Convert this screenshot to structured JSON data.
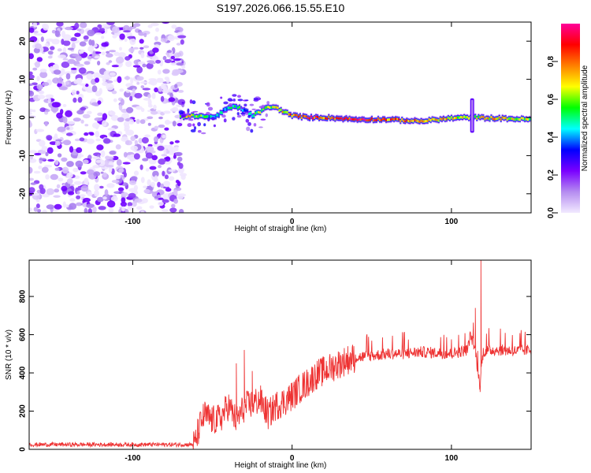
{
  "title": "S197.2026.066.15.55.E10",
  "chart_data": [
    {
      "type": "heatmap",
      "title": "S197.2026.066.15.55.E10",
      "xlabel": "Height of straight line (km)",
      "ylabel": "Frequency (Hz)",
      "xlim": [
        -165,
        150
      ],
      "ylim": [
        -25,
        25
      ],
      "xticks": [
        -100,
        0,
        100
      ],
      "yticks": [
        -20,
        -10,
        0,
        10,
        20
      ],
      "colorbar": {
        "label": "Normalized spectral amplitude",
        "range": [
          0,
          1
        ],
        "ticks": [
          0.0,
          0.2,
          0.4,
          0.6,
          0.8
        ],
        "colors": [
          "#f2eaff",
          "#b58cf0",
          "#7a00ff",
          "#0000ff",
          "#00ffff",
          "#00ff00",
          "#ffff00",
          "#ff7f00",
          "#ff0000",
          "#ff0099"
        ]
      },
      "noise_region_x": [
        -165,
        -70
      ],
      "ridge": {
        "x": [
          -70,
          -65,
          -60,
          -55,
          -50,
          -45,
          -40,
          -35,
          -30,
          -25,
          -20,
          -15,
          -10,
          -5,
          0,
          10,
          20,
          40,
          60,
          80,
          100,
          110,
          115,
          120,
          135,
          150
        ],
        "freq": [
          0.2,
          0.3,
          0.5,
          0.3,
          0.0,
          1.0,
          2.5,
          2.8,
          2.0,
          0.5,
          1.5,
          2.8,
          2.5,
          1.5,
          0.5,
          0.0,
          0.0,
          -0.5,
          -0.5,
          -1.0,
          -0.2,
          0.0,
          0.0,
          -0.1,
          -0.3,
          -0.5
        ],
        "amplitude": [
          0.6,
          0.7,
          0.6,
          0.5,
          0.4,
          0.5,
          0.4,
          0.5,
          0.4,
          0.5,
          0.6,
          0.6,
          0.7,
          0.7,
          0.8,
          0.9,
          0.8,
          0.9,
          0.8,
          0.8,
          0.7,
          0.6,
          0.6,
          0.7,
          0.7,
          0.6
        ]
      },
      "spike": {
        "x": 113,
        "freq_range": [
          -4,
          5
        ]
      }
    },
    {
      "type": "line",
      "xlabel": "Height of straight line (km)",
      "ylabel": "SNR (10 * v/v)",
      "xlim": [
        -165,
        150
      ],
      "ylim": [
        0,
        990
      ],
      "xticks": [
        -100,
        0,
        100
      ],
      "yticks": [
        0,
        200,
        400,
        600,
        800
      ],
      "color": "#ee3333",
      "series": [
        {
          "name": "SNR",
          "x": [
            -165,
            -150,
            -130,
            -110,
            -90,
            -70,
            -65,
            -61,
            -58,
            -55,
            -50,
            -45,
            -40,
            -35,
            -30,
            -25,
            -20,
            -15,
            -10,
            -5,
            0,
            5,
            10,
            15,
            20,
            25,
            30,
            35,
            40,
            50,
            60,
            70,
            80,
            90,
            100,
            105,
            110,
            112,
            115,
            117,
            118,
            119,
            120,
            125,
            130,
            140,
            150
          ],
          "values": [
            25,
            25,
            25,
            25,
            25,
            25,
            25,
            25,
            120,
            180,
            150,
            160,
            230,
            150,
            220,
            240,
            260,
            180,
            230,
            250,
            280,
            320,
            350,
            390,
            410,
            430,
            450,
            470,
            480,
            490,
            500,
            500,
            510,
            505,
            500,
            510,
            520,
            600,
            520,
            380,
            330,
            450,
            510,
            520,
            520,
            515,
            520
          ]
        }
      ],
      "spikes": [
        {
          "x": -30,
          "value": 520
        },
        {
          "x": -35,
          "value": 450
        },
        {
          "x": -25,
          "value": 410
        },
        {
          "x": 115,
          "value": 740
        },
        {
          "x": 118.5,
          "value": 990
        },
        {
          "x": 118,
          "value": 300
        }
      ]
    }
  ]
}
